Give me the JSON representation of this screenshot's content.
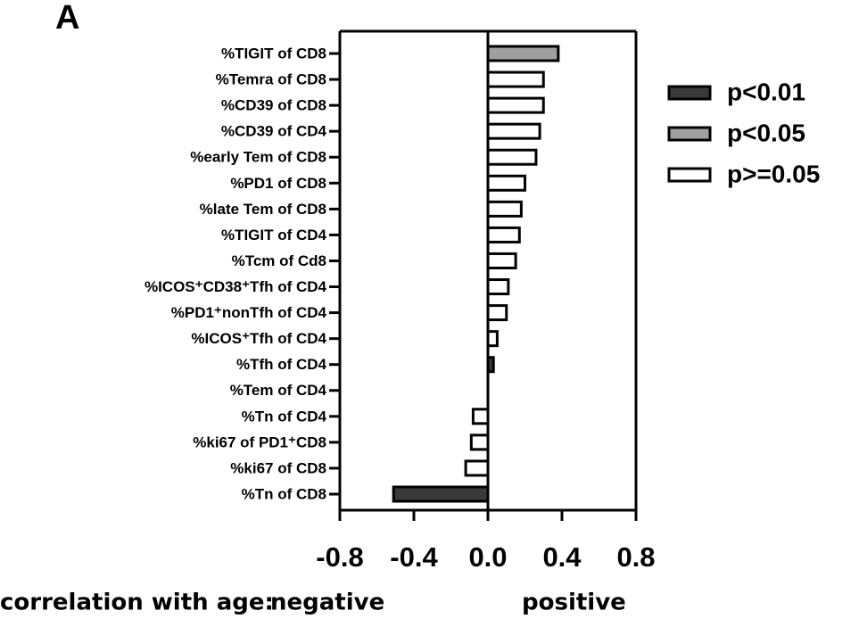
{
  "chart_data": {
    "type": "hbar",
    "panel_label": "A",
    "categories": [
      "%TIGIT of CD8",
      "%Temra of CD8",
      "%CD39 of CD8",
      "%CD39 of CD4",
      "%early Tem of CD8",
      "%PD1 of CD8",
      "%late Tem of CD8",
      "%TIGIT of CD4",
      "%Tcm of Cd8",
      "%ICOS⁺CD38⁺Tfh of CD4",
      "%PD1⁺nonTfh of CD4",
      "%ICOS⁺Tfh of CD4",
      "%Tfh of CD4",
      "%Tem of CD4",
      "%Tn of CD4",
      "%ki67 of PD1⁺CD8",
      "%ki67 of CD8",
      "%Tn of CD8"
    ],
    "series": [
      {
        "name": "p<0.01",
        "color": "#3a3a3a",
        "values": [
          null,
          null,
          null,
          null,
          null,
          null,
          null,
          null,
          null,
          null,
          null,
          null,
          0.03,
          null,
          null,
          null,
          null,
          -0.51
        ]
      },
      {
        "name": "p<0.05",
        "color": "#a0a0a0",
        "values": [
          0.38,
          null,
          null,
          null,
          null,
          null,
          null,
          null,
          null,
          null,
          null,
          null,
          null,
          null,
          null,
          null,
          null,
          null
        ]
      },
      {
        "name": "p>=0.05",
        "color": "#ffffff",
        "values": [
          null,
          0.3,
          0.3,
          0.28,
          0.26,
          0.2,
          0.18,
          0.17,
          0.15,
          0.11,
          0.1,
          0.05,
          null,
          0,
          -0.08,
          -0.09,
          -0.12,
          null
        ]
      }
    ],
    "xlim": [
      -0.8,
      0.8
    ],
    "xticks": [
      -0.8,
      -0.4,
      {
        "value": 0,
        "label": "0.0"
      },
      0.4,
      0.8
    ],
    "x_label": "correlation with age:",
    "negative_label": "negative",
    "positive_label": "positive",
    "legend": "right"
  }
}
